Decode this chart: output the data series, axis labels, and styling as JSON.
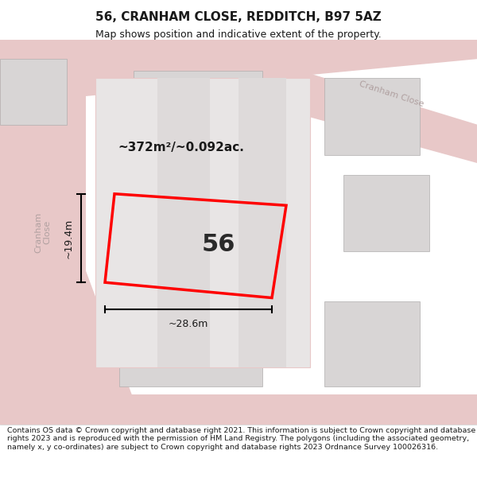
{
  "title": "56, CRANHAM CLOSE, REDDITCH, B97 5AZ",
  "subtitle": "Map shows position and indicative extent of the property.",
  "footer": "Contains OS data © Crown copyright and database right 2021. This information is subject to Crown copyright and database rights 2023 and is reproduced with the permission of HM Land Registry. The polygons (including the associated geometry, namely x, y co-ordinates) are subject to Crown copyright and database rights 2023 Ordnance Survey 100026316.",
  "area_label": "~372m²/~0.092ac.",
  "width_label": "~28.6m",
  "height_label": "~19.4m",
  "number_label": "56",
  "bg_color": "#f0eeee",
  "map_bg": "#f5f3f3",
  "road_color": "#e8c8c8",
  "building_color": "#d8d5d5",
  "building_edge": "#b0aeae",
  "plot_color": "red",
  "plot_fill": "#f5f3f3",
  "road_label_color": "#b0a0a0",
  "dim_color": "#1a1a1a",
  "title_color": "#1a1a1a",
  "footer_color": "#1a1a1a"
}
